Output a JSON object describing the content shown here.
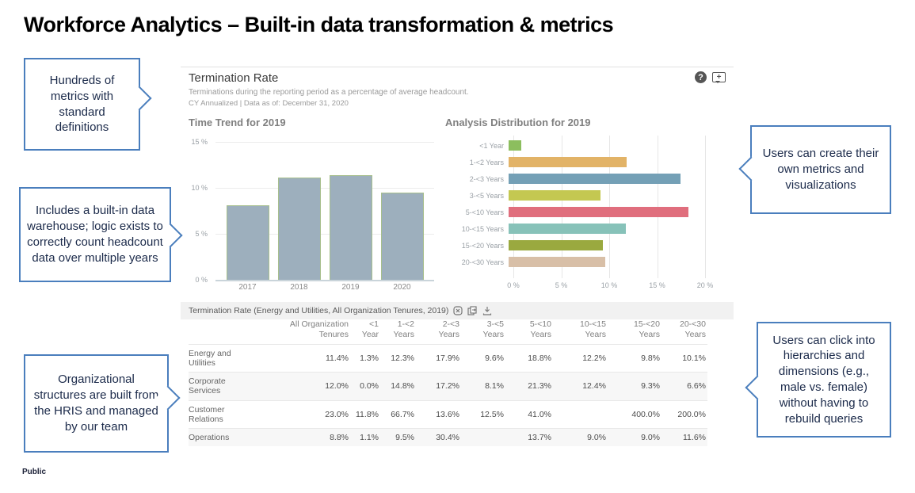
{
  "slide": {
    "title": "Workforce Analytics – Built-in data transformation & metrics",
    "footer": "Public"
  },
  "callouts": {
    "left": [
      {
        "text": "Hundreds of metrics with standard definitions"
      },
      {
        "text": "Includes a built-in data warehouse; logic exists to correctly count headcount data over multiple years"
      },
      {
        "text": "Organizational structures are built from the HRIS and managed by our team"
      }
    ],
    "right": [
      {
        "text": "Users can create their own metrics and visualizations"
      },
      {
        "text": "Users can click into hierarchies and dimensions (e.g., male vs. female) without having to rebuild queries"
      }
    ],
    "border_color": "#4a7ebd"
  },
  "dashboard": {
    "title": "Termination Rate",
    "subtitle": "Terminations during the reporting period as a percentage of average headcount.",
    "context": "CY Annualized | Data as of: December 31, 2020",
    "help_glyph": "?",
    "feedback_glyph": "+"
  },
  "chart_data": [
    {
      "type": "bar",
      "title": "Time Trend for 2019",
      "categories": [
        "2017",
        "2018",
        "2019",
        "2020"
      ],
      "values": [
        8.1,
        11.1,
        11.4,
        9.5
      ],
      "ylim": [
        0,
        15
      ],
      "ytick_values": [
        0,
        5,
        10,
        15
      ],
      "ytick_labels": [
        "0 %",
        "5 %",
        "10 %",
        "15 %"
      ],
      "bar_color": "#9dafbd",
      "bar_border_color": "#a7bf8d",
      "grid": "horizontal",
      "legend": "none"
    },
    {
      "type": "bar-horizontal",
      "title": "Analysis Distribution for 2019",
      "categories": [
        "<1 Year",
        "1-<2 Years",
        "2-<3 Years",
        "3-<5 Years",
        "5-<10 Years",
        "10-<15 Years",
        "15-<20 Years",
        "20-<30 Years"
      ],
      "values": [
        1.3,
        12.3,
        17.9,
        9.6,
        18.8,
        12.2,
        9.8,
        10.1
      ],
      "colors": [
        "#8cbe5e",
        "#e2b367",
        "#74a0b6",
        "#c4c851",
        "#e06e7d",
        "#87c2b9",
        "#9aa93f",
        "#d8bfa7"
      ],
      "xlim": [
        0,
        20
      ],
      "xtick_values": [
        0,
        5,
        10,
        15,
        20
      ],
      "xtick_labels": [
        "0 %",
        "5 %",
        "10 %",
        "15 %",
        "20 %"
      ],
      "grid": "vertical",
      "legend": "none"
    }
  ],
  "table": {
    "title": "Termination Rate (Energy and Utilities, All Organization Tenures, 2019)",
    "columns": [
      "All Organization\nTenures",
      "<1\nYear",
      "1-<2\nYears",
      "2-<3\nYears",
      "3-<5\nYears",
      "5-<10\nYears",
      "10-<15\nYears",
      "15-<20\nYears",
      "20-<30\nYears"
    ],
    "rows": [
      {
        "label": "Energy and\nUtilities",
        "values": [
          "11.4%",
          "1.3%",
          "12.3%",
          "17.9%",
          "9.6%",
          "18.8%",
          "12.2%",
          "9.8%",
          "10.1%"
        ]
      },
      {
        "label": "Corporate\nServices",
        "values": [
          "12.0%",
          "0.0%",
          "14.8%",
          "17.2%",
          "8.1%",
          "21.3%",
          "12.4%",
          "9.3%",
          "6.6%"
        ]
      },
      {
        "label": "Customer\nRelations",
        "values": [
          "23.0%",
          "11.8%",
          "66.7%",
          "13.6%",
          "12.5%",
          "41.0%",
          "",
          "400.0%",
          "200.0%"
        ]
      },
      {
        "label": "Operations",
        "values": [
          "8.8%",
          "1.1%",
          "9.5%",
          "30.4%",
          "",
          "13.7%",
          "9.0%",
          "9.0%",
          "11.6%"
        ]
      }
    ]
  }
}
